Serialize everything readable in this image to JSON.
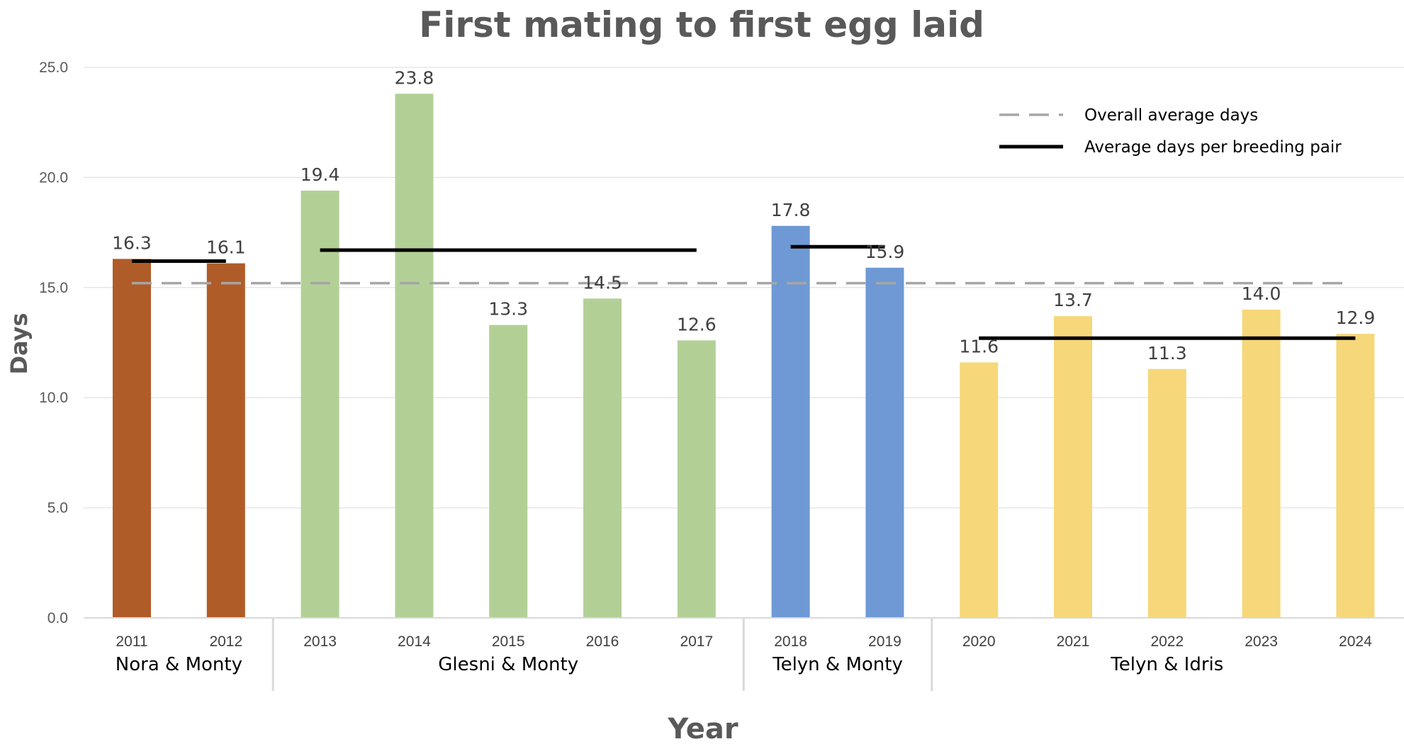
{
  "chart_data": {
    "type": "bar",
    "title": "First mating to first egg laid",
    "xlabel": "Year",
    "ylabel": "Days",
    "ylim": [
      0,
      25
    ],
    "yticks": [
      "0.0",
      "5.0",
      "10.0",
      "15.0",
      "20.0",
      "25.0"
    ],
    "grid": true,
    "legend_position": "top-right",
    "categories": [
      "2011",
      "2012",
      "2013",
      "2014",
      "2015",
      "2016",
      "2017",
      "2018",
      "2019",
      "2020",
      "2021",
      "2022",
      "2023",
      "2024"
    ],
    "values": [
      16.3,
      16.1,
      19.4,
      23.8,
      13.3,
      14.5,
      12.6,
      17.8,
      15.9,
      11.6,
      13.7,
      11.3,
      14.0,
      12.9
    ],
    "data_labels": [
      "16.3",
      "16.1",
      "19.4",
      "23.8",
      "13.3",
      "14.5",
      "12.6",
      "17.8",
      "15.9",
      "11.6",
      "13.7",
      "11.3",
      "14.0",
      "12.9"
    ],
    "groups": [
      {
        "name": "Nora & Monty",
        "years": [
          "2011",
          "2012"
        ],
        "color": "#b05c28",
        "average_days": 16.2
      },
      {
        "name": "Glesni & Monty",
        "years": [
          "2013",
          "2014",
          "2015",
          "2016",
          "2017"
        ],
        "color": "#b2d096",
        "average_days": 16.7
      },
      {
        "name": "Telyn & Monty",
        "years": [
          "2018",
          "2019"
        ],
        "color": "#6e99d4",
        "average_days": 16.85
      },
      {
        "name": "Telyn & Idris",
        "years": [
          "2020",
          "2021",
          "2022",
          "2023",
          "2024"
        ],
        "color": "#f6d77a",
        "average_days": 12.7
      }
    ],
    "overall_average": 15.2,
    "legend": [
      {
        "label": "Overall average days",
        "style": "dashed",
        "color": "#a6a6a6"
      },
      {
        "label": "Average days per breeding pair",
        "style": "solid",
        "color": "#000000"
      }
    ]
  }
}
